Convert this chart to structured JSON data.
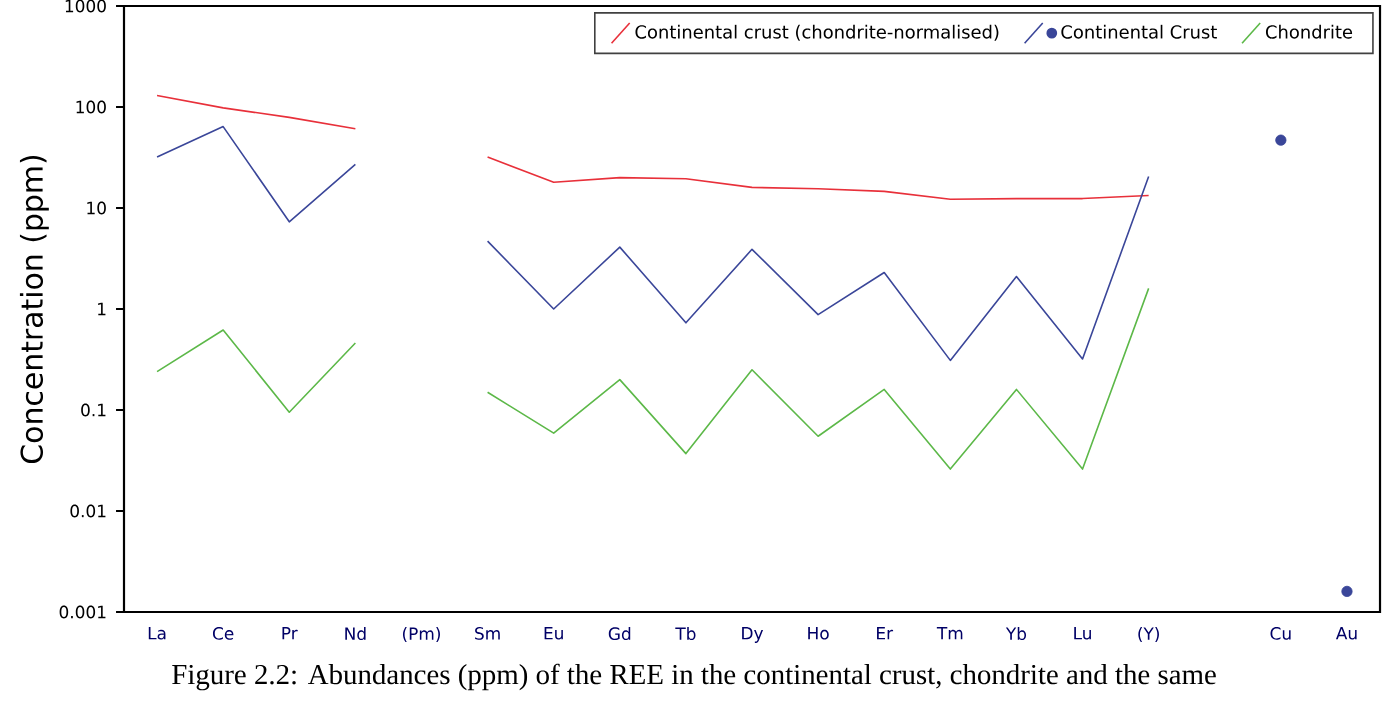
{
  "chart_data": {
    "type": "line",
    "ylabel": "Concentration (ppm)",
    "categories": [
      "La",
      "Ce",
      "Pr",
      "Nd",
      "(Pm)",
      "Sm",
      "Eu",
      "Gd",
      "Tb",
      "Dy",
      "Ho",
      "Er",
      "Tm",
      "Yb",
      "Lu",
      "(Y)",
      null,
      "Cu",
      "Au"
    ],
    "series": [
      {
        "name": "Continental crust (chondrite-normalised)",
        "color": "#e8303a",
        "values": [
          130,
          98,
          79,
          61,
          null,
          32,
          18,
          20,
          19.5,
          16,
          15.5,
          14.6,
          12.2,
          12.4,
          12.4,
          13.3,
          null,
          null,
          null
        ]
      },
      {
        "name": "Continental Crust",
        "color": "#3a4699",
        "values": [
          32,
          64,
          7.3,
          27,
          null,
          4.7,
          1.0,
          4.1,
          0.73,
          3.9,
          0.88,
          2.3,
          0.31,
          2.1,
          0.32,
          20.5,
          null,
          null,
          null
        ]
      },
      {
        "name": "Chondrite",
        "color": "#5cb848",
        "values": [
          0.24,
          0.62,
          0.095,
          0.46,
          null,
          0.15,
          0.059,
          0.2,
          0.037,
          0.25,
          0.055,
          0.16,
          0.026,
          0.16,
          0.026,
          1.6,
          null,
          null,
          null
        ]
      },
      {
        "type": "scatter",
        "marker": "circle",
        "color": "#3a4699",
        "values": [
          null,
          null,
          null,
          null,
          null,
          null,
          null,
          null,
          null,
          null,
          null,
          null,
          null,
          null,
          null,
          null,
          null,
          47,
          0.0016
        ]
      }
    ],
    "log": "y",
    "ylim": [
      0.001,
      1000
    ],
    "yticks": [
      0.001,
      0.01,
      0.1,
      1,
      10,
      100,
      1000
    ],
    "legend": "top right",
    "grid": false,
    "annotations": [
      "Figure 2.2: Abundances (ppm) of the REE in the continental crust, chondrite and the same"
    ]
  }
}
